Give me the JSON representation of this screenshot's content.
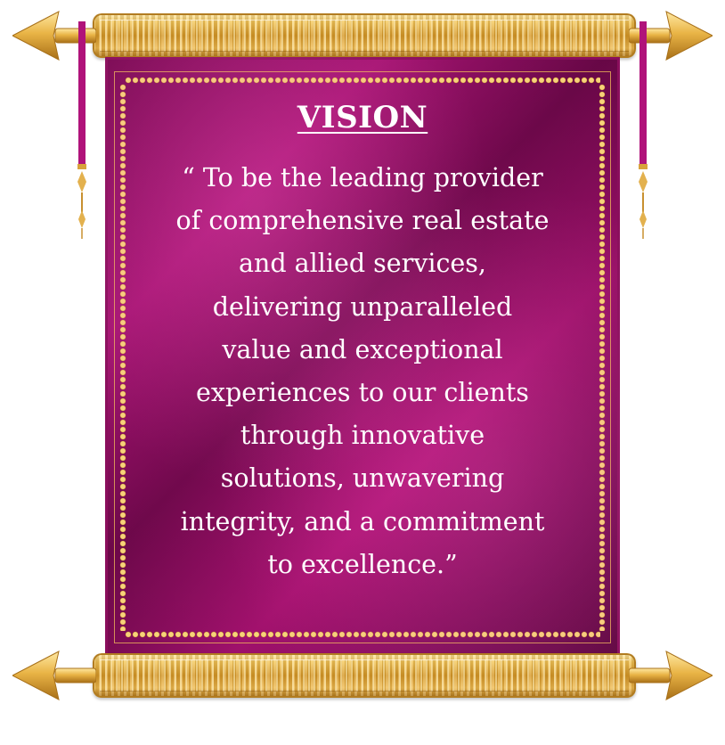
{
  "title": "VISION",
  "statement_lines": [
    "“ To be the leading provider",
    "of comprehensive real estate",
    "and allied services,",
    "delivering unparalleled",
    "value and exceptional",
    "experiences to our clients",
    "through innovative",
    "solutions, unwavering",
    "integrity, and a commitment",
    "to excellence.”"
  ],
  "colors": {
    "banner": "#9b0f6a",
    "gold": "#d69a2a",
    "text": "#ffffff"
  }
}
